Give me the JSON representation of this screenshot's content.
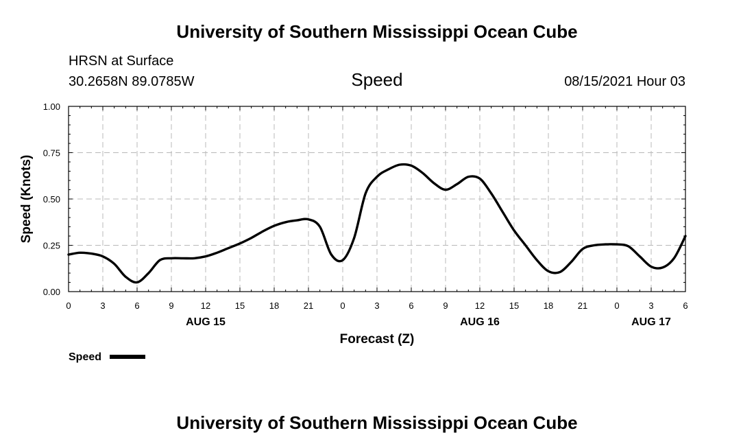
{
  "header": {
    "title_top": "University of Southern Mississippi Ocean Cube",
    "station": "HRSN at Surface",
    "coords": "30.2658N  89.0785W",
    "variable": "Speed",
    "datetime": "08/15/2021 Hour 03",
    "title_bottom": "University of Southern Mississippi Ocean Cube"
  },
  "chart_data": {
    "type": "line",
    "title": "Speed",
    "xlabel": "Forecast (Z)",
    "ylabel": "Speed (Knots)",
    "xlim": [
      0,
      54
    ],
    "ylim": [
      0,
      1
    ],
    "grid": true,
    "y_ticks": [
      "0.00",
      "0.25",
      "0.50",
      "0.75",
      "1.00"
    ],
    "x_ticks": [
      "0",
      "3",
      "6",
      "9",
      "12",
      "15",
      "18",
      "21",
      "0",
      "3",
      "6",
      "9",
      "12",
      "15",
      "18",
      "21",
      "0",
      "3",
      "6"
    ],
    "day_labels": [
      {
        "label": "AUG 15",
        "at": 12
      },
      {
        "label": "AUG 16",
        "at": 36
      },
      {
        "label": "AUG 17",
        "at": 51
      }
    ],
    "legend": {
      "label": "Speed",
      "placement": "bottom-left"
    },
    "series": [
      {
        "name": "Speed",
        "color": "#000000",
        "x": [
          0,
          1,
          2,
          3,
          4,
          5,
          6,
          7,
          8,
          9,
          10,
          11,
          12,
          13,
          14,
          15,
          16,
          17,
          18,
          19,
          20,
          21,
          22,
          23,
          24,
          25,
          26,
          27,
          28,
          29,
          30,
          31,
          32,
          33,
          34,
          35,
          36,
          37,
          38,
          39,
          40,
          41,
          42,
          43,
          44,
          45,
          46,
          47,
          48,
          49,
          50,
          51,
          52,
          53,
          54
        ],
        "y": [
          0.2,
          0.21,
          0.205,
          0.19,
          0.15,
          0.08,
          0.05,
          0.1,
          0.17,
          0.18,
          0.18,
          0.18,
          0.19,
          0.21,
          0.235,
          0.26,
          0.29,
          0.325,
          0.355,
          0.375,
          0.385,
          0.39,
          0.35,
          0.2,
          0.17,
          0.29,
          0.53,
          0.62,
          0.66,
          0.685,
          0.68,
          0.64,
          0.585,
          0.55,
          0.58,
          0.62,
          0.61,
          0.53,
          0.43,
          0.33,
          0.25,
          0.17,
          0.11,
          0.105,
          0.16,
          0.23,
          0.25,
          0.255,
          0.255,
          0.245,
          0.19,
          0.135,
          0.13,
          0.18,
          0.3
        ]
      }
    ]
  }
}
